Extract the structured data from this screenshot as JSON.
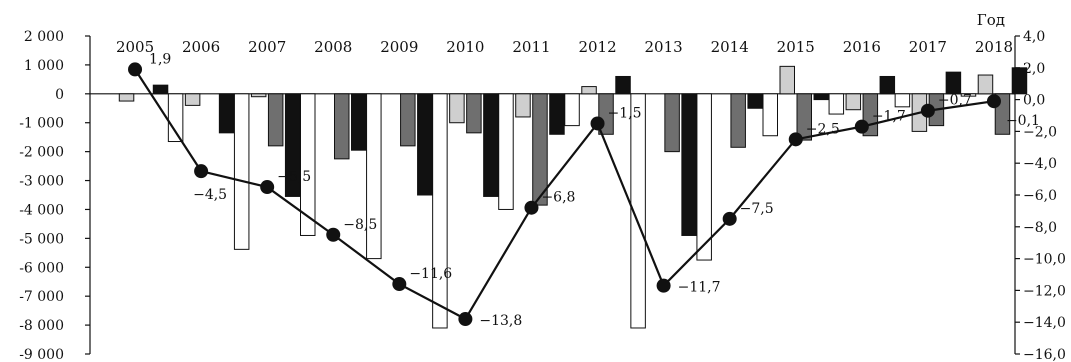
{
  "chart_data": {
    "type": "bar",
    "axis_unit_label": "Год",
    "categories": [
      "2005",
      "2006",
      "2007",
      "2008",
      "2009",
      "2010",
      "2011",
      "2012",
      "2013",
      "2014",
      "2015",
      "2016",
      "2017",
      "2018"
    ],
    "left_axis": {
      "min": -9000,
      "max": 2000,
      "step": 1000,
      "tick_labels": [
        "2 000",
        "1 000",
        "0",
        "-1 000",
        "-2 000",
        "-3 000",
        "-4 000",
        "-5 000",
        "-6 000",
        "-7 000",
        "-8 000",
        "-9 000"
      ]
    },
    "right_axis": {
      "min": -16,
      "max": 4,
      "step": 2,
      "tick_labels": [
        "4,0",
        "2,0",
        "0,0",
        "−2,0",
        "−4,0",
        "−6,0",
        "−8,0",
        "−10,0",
        "−12,0",
        "−14,0",
        "−16,0"
      ]
    },
    "series": [
      {
        "fill": "#ffffff",
        "values": [
          0,
          -1650,
          -5380,
          -4900,
          -5700,
          -8100,
          -4000,
          -1100,
          -8100,
          -5750,
          -1450,
          -700,
          -450,
          -80
        ]
      },
      {
        "fill": "#cfcfcf",
        "values": [
          -250,
          -400,
          -100,
          0,
          0,
          -1000,
          -800,
          250,
          0,
          0,
          950,
          -550,
          -1300,
          650
        ]
      },
      {
        "fill": "#6f6f6f",
        "values": [
          0,
          0,
          -1800,
          -2250,
          -1800,
          -1350,
          -3850,
          -1400,
          -2000,
          -1850,
          -1600,
          -1450,
          -1100,
          -1400
        ]
      },
      {
        "fill": "#111111",
        "values": [
          300,
          -1350,
          -3550,
          -1950,
          -3500,
          -3550,
          -1400,
          600,
          -4900,
          -500,
          -200,
          600,
          750,
          900
        ]
      }
    ],
    "line": {
      "axis": "right",
      "values": [
        1.9,
        -4.5,
        -5.5,
        -8.5,
        -11.6,
        -13.8,
        -6.8,
        -1.5,
        -11.7,
        -7.5,
        -2.5,
        -1.7,
        -0.7,
        -0.1
      ],
      "labels": [
        "1,9",
        "−4,5",
        "−5,5",
        "−8,5",
        "−11,6",
        "−13,8",
        "−6,8",
        "−1,5",
        "−11,7",
        "−7,5",
        "−2,5",
        "−1,7",
        "−0,7",
        "−0,1"
      ]
    }
  }
}
